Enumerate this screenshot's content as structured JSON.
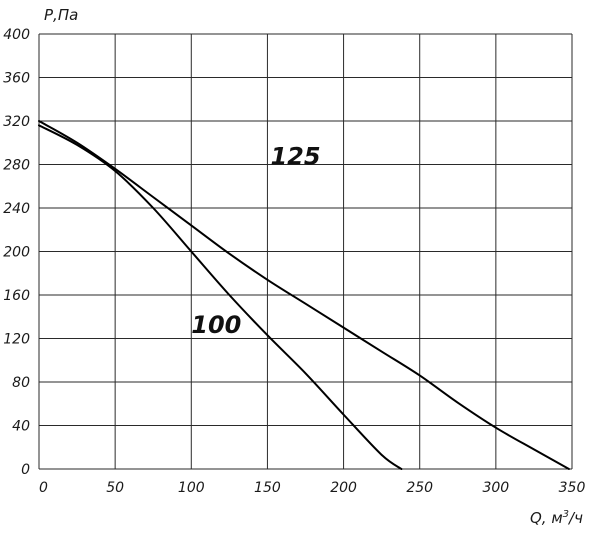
{
  "chart_data": {
    "type": "line",
    "xlabel": "Q, м",
    "xlabel_sup": "3",
    "xlabel_unit": "/ч",
    "ylabel": "Р,Па",
    "xlim": [
      0,
      350
    ],
    "ylim": [
      0,
      400
    ],
    "xticks": [
      "0",
      "50",
      "100",
      "150",
      "200",
      "250",
      "300",
      "350"
    ],
    "yticks": [
      "0",
      "40",
      "80",
      "120",
      "160",
      "200",
      "240",
      "280",
      "320",
      "360",
      "400"
    ],
    "grid": true,
    "series": [
      {
        "name": "100",
        "x": [
          0,
          25,
          50,
          75,
          100,
          125,
          150,
          175,
          200,
          225,
          238
        ],
        "y": [
          316,
          298,
          274,
          240,
          200,
          160,
          123,
          88,
          50,
          13,
          0
        ]
      },
      {
        "name": "125",
        "x": [
          0,
          25,
          50,
          75,
          100,
          125,
          150,
          175,
          200,
          225,
          250,
          275,
          300,
          325,
          348
        ],
        "y": [
          320,
          300,
          276,
          250,
          224,
          198,
          174,
          152,
          130,
          108,
          86,
          61,
          38,
          18,
          0
        ]
      }
    ],
    "colors": {
      "line": "#000000",
      "grid": "#2a2a2a"
    }
  }
}
